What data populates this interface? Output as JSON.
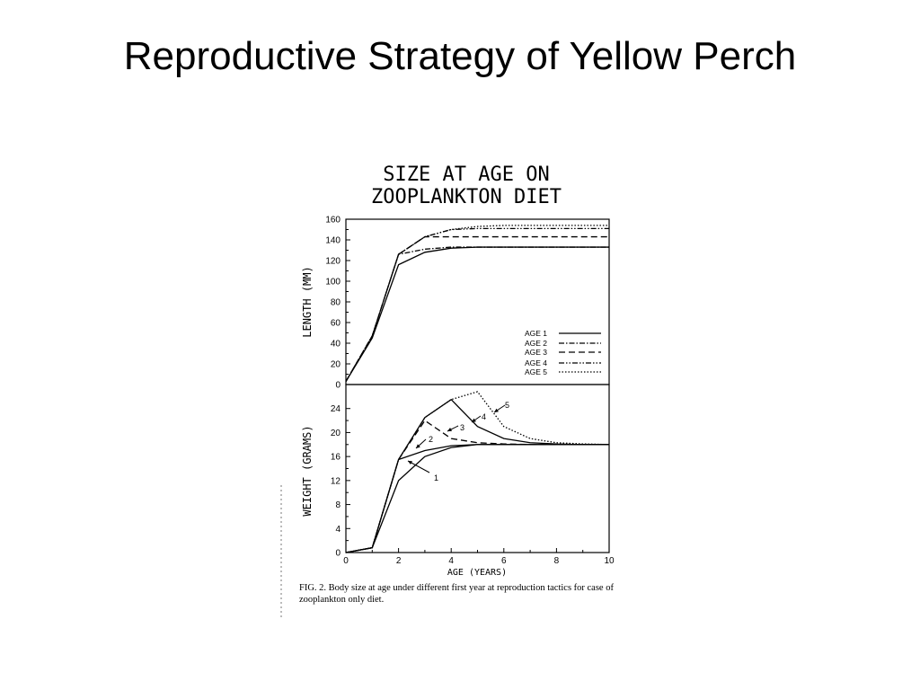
{
  "slide": {
    "title": "Reproductive Strategy of Yellow Perch"
  },
  "figure": {
    "heading_line1": "SIZE AT AGE ON",
    "heading_line2": "ZOOPLANKTON DIET",
    "caption": "FIG. 2. Body size at age under different first year at reproduction tactics for case of zooplankton only diet."
  },
  "chart_data": [
    {
      "type": "line",
      "panel": "length",
      "title": "",
      "xlabel": "",
      "ylabel": "LENGTH (MM)",
      "xlim": [
        0,
        10
      ],
      "ylim": [
        0,
        160
      ],
      "yticks": [
        0,
        20,
        40,
        60,
        80,
        100,
        120,
        140,
        160
      ],
      "legend_position": "lower-right",
      "series": [
        {
          "name": "AGE 1",
          "style": "solid",
          "x": [
            0,
            1,
            2,
            3,
            4,
            5,
            6,
            7,
            8,
            9,
            10
          ],
          "y": [
            3,
            45,
            116,
            128,
            132,
            133,
            133,
            133,
            133,
            133,
            133
          ]
        },
        {
          "name": "AGE 2",
          "style": "dash-dot",
          "x": [
            0,
            1,
            2,
            3,
            4,
            5,
            6,
            7,
            8,
            9,
            10
          ],
          "y": [
            3,
            47,
            126,
            131,
            133,
            133,
            133,
            133,
            133,
            133,
            133
          ]
        },
        {
          "name": "AGE 3",
          "style": "dashed",
          "x": [
            0,
            1,
            2,
            3,
            4,
            5,
            6,
            7,
            8,
            9,
            10
          ],
          "y": [
            3,
            47,
            126,
            143,
            143,
            143,
            143,
            143,
            143,
            143,
            143
          ]
        },
        {
          "name": "AGE 4",
          "style": "dash-dot-dot",
          "x": [
            0,
            1,
            2,
            3,
            4,
            5,
            6,
            7,
            8,
            9,
            10
          ],
          "y": [
            3,
            47,
            126,
            143,
            150,
            151,
            151,
            151,
            151,
            151,
            151
          ]
        },
        {
          "name": "AGE 5",
          "style": "dotted",
          "x": [
            0,
            1,
            2,
            3,
            4,
            5,
            6,
            7,
            8,
            9,
            10
          ],
          "y": [
            3,
            47,
            126,
            143,
            150,
            153,
            154,
            154,
            154,
            154,
            154
          ]
        }
      ]
    },
    {
      "type": "line",
      "panel": "weight",
      "title": "",
      "xlabel": "AGE (YEARS)",
      "ylabel": "WEIGHT (GRAMS)",
      "xlim": [
        0,
        10
      ],
      "ylim": [
        0,
        28
      ],
      "xticks": [
        0,
        2,
        4,
        6,
        8,
        10
      ],
      "yticks": [
        0,
        4,
        8,
        12,
        16,
        20,
        24
      ],
      "annotations": [
        "1",
        "2",
        "3",
        "4",
        "5"
      ],
      "series": [
        {
          "name": "AGE 1",
          "style": "solid",
          "x": [
            0,
            1,
            2,
            3,
            4,
            5,
            6,
            7,
            8,
            9,
            10
          ],
          "y": [
            0,
            0.8,
            12,
            16,
            17.5,
            18,
            18,
            18,
            18,
            18,
            18
          ]
        },
        {
          "name": "AGE 2",
          "style": "solid",
          "x": [
            0,
            1,
            2,
            3,
            4,
            5,
            6,
            7,
            8,
            9,
            10
          ],
          "y": [
            0,
            0.8,
            15.5,
            17,
            17.8,
            18,
            18,
            18,
            18,
            18,
            18
          ]
        },
        {
          "name": "AGE 3",
          "style": "dashed",
          "x": [
            0,
            1,
            2,
            3,
            4,
            5,
            6,
            7,
            8,
            9,
            10
          ],
          "y": [
            0,
            0.8,
            15.5,
            22,
            19,
            18.3,
            18.1,
            18,
            18,
            18,
            18
          ]
        },
        {
          "name": "AGE 4",
          "style": "solid",
          "x": [
            0,
            1,
            2,
            3,
            4,
            5,
            6,
            7,
            8,
            9,
            10
          ],
          "y": [
            0,
            0.8,
            15.5,
            22.5,
            25.5,
            21,
            19,
            18.3,
            18.1,
            18,
            18
          ]
        },
        {
          "name": "AGE 5",
          "style": "dotted",
          "x": [
            0,
            1,
            2,
            3,
            4,
            5,
            6,
            7,
            8,
            9,
            10
          ],
          "y": [
            0,
            0.8,
            15.5,
            22.5,
            25.5,
            26.8,
            21,
            19,
            18.3,
            18.1,
            18
          ]
        }
      ]
    }
  ]
}
